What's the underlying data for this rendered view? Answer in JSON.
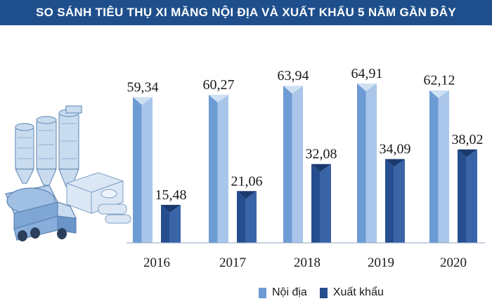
{
  "colors": {
    "title_bg": "#1e4f8c",
    "domestic": "#6d9bd3",
    "domestic_light": "#a9c6ea",
    "export": "#264d8e",
    "export_dark": "#1a3a6e"
  },
  "illustration": {
    "icon": "cement-plant-and-mixer-truck-icon"
  },
  "chart_data": {
    "type": "bar",
    "title": "SO SÁNH TIÊU THỤ XI MĂNG NỘI ĐỊA VÀ XUẤT KHẨU 5 NĂM GẦN ĐÂY",
    "categories": [
      "2016",
      "2017",
      "2018",
      "2019",
      "2020"
    ],
    "series": [
      {
        "name": "Nội địa",
        "values": [
          59.34,
          60.27,
          63.94,
          64.91,
          62.12
        ],
        "labels": [
          "59,34",
          "60,27",
          "63,94",
          "64,91",
          "62,12"
        ]
      },
      {
        "name": "Xuất khẩu",
        "values": [
          15.48,
          21.06,
          32.08,
          34.09,
          38.02
        ],
        "labels": [
          "15,48",
          "21,06",
          "32,08",
          "34,09",
          "38,02"
        ]
      }
    ],
    "ylim": [
      0,
      70
    ],
    "grid": false,
    "legend_position": "bottom"
  }
}
